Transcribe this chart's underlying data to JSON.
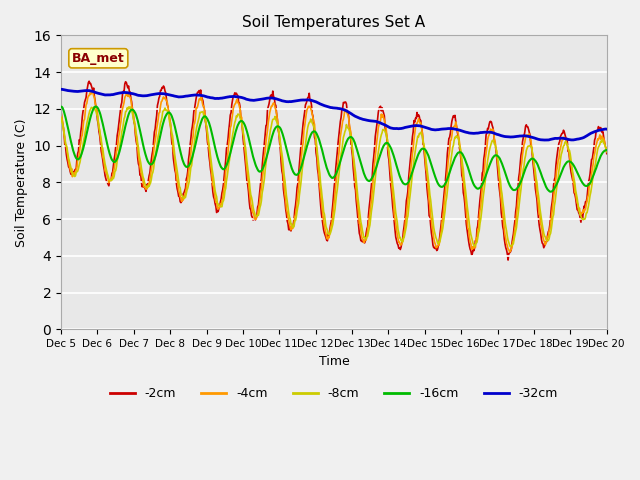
{
  "title": "Soil Temperatures Set A",
  "xlabel": "Time",
  "ylabel": "Soil Temperature (C)",
  "ylim": [
    0,
    16
  ],
  "yticks": [
    0,
    2,
    4,
    6,
    8,
    10,
    12,
    14,
    16
  ],
  "x_labels": [
    "Dec 5",
    "Dec 6",
    "Dec 7",
    "Dec 8",
    "Dec 9",
    "Dec 10",
    "Dec 11",
    "Dec 12",
    "Dec 13",
    "Dec 14",
    "Dec 15",
    "Dec 16",
    "Dec 17",
    "Dec 18",
    "Dec 19",
    "Dec 20"
  ],
  "annotation_text": "BA_met",
  "bg_color": "#e8e8e8",
  "fig_bg_color": "#f0f0f0",
  "line_colors": [
    "#cc0000",
    "#ff9900",
    "#cccc00",
    "#00bb00",
    "#0000cc"
  ],
  "line_labels": [
    "-2cm",
    "-4cm",
    "-8cm",
    "-16cm",
    "-32cm"
  ],
  "line_widths": [
    1.2,
    1.2,
    1.2,
    1.5,
    2.0
  ]
}
